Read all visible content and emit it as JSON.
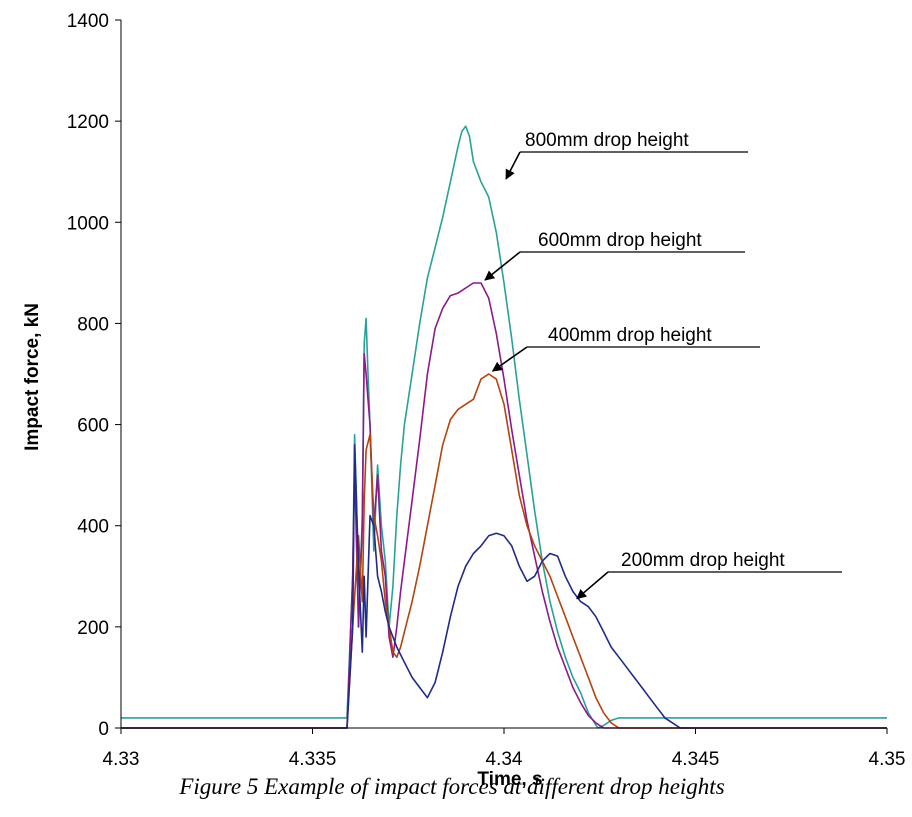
{
  "chart_data": {
    "type": "line",
    "xlabel": "Time, s",
    "ylabel": "Impact force, kN",
    "xlim": [
      4.33,
      4.35
    ],
    "ylim": [
      0,
      1400
    ],
    "xticks": [
      "4.33",
      "4.335",
      "4.34",
      "4.345",
      "4.35"
    ],
    "yticks": [
      "0",
      "200",
      "400",
      "600",
      "800",
      "1000",
      "1200",
      "1400"
    ],
    "grid": false,
    "series": [
      {
        "name": "800mm drop height",
        "color": "#2aa198",
        "x": [
          4.33,
          4.3359,
          4.33605,
          4.3361,
          4.33615,
          4.3362,
          4.3363,
          4.33635,
          4.3364,
          4.33645,
          4.3365,
          4.3366,
          4.3367,
          4.3368,
          4.3369,
          4.337,
          4.3371,
          4.3372,
          4.3373,
          4.3374,
          4.3376,
          4.3378,
          4.338,
          4.3382,
          4.3384,
          4.3386,
          4.3388,
          4.3389,
          4.339,
          4.3391,
          4.3392,
          4.3394,
          4.3396,
          4.3398,
          4.34,
          4.3402,
          4.3404,
          4.3406,
          4.3408,
          4.341,
          4.3412,
          4.3414,
          4.3416,
          4.3418,
          4.342,
          4.3422,
          4.34245,
          4.3426,
          4.3428,
          4.343,
          4.3435,
          4.344,
          4.345,
          4.346,
          4.347,
          4.348,
          4.349,
          4.35
        ],
        "y": [
          20,
          20,
          300,
          580,
          450,
          200,
          420,
          760,
          810,
          700,
          600,
          350,
          520,
          400,
          330,
          200,
          280,
          420,
          520,
          600,
          700,
          800,
          890,
          950,
          1010,
          1080,
          1150,
          1180,
          1190,
          1170,
          1120,
          1080,
          1050,
          980,
          880,
          770,
          650,
          540,
          430,
          330,
          250,
          190,
          140,
          100,
          70,
          30,
          0,
          5,
          15,
          20,
          20,
          20,
          20,
          20,
          20,
          20,
          20,
          20
        ]
      },
      {
        "name": "600mm drop height",
        "color": "#8b1a8b",
        "x": [
          4.33,
          4.3359,
          4.33605,
          4.3361,
          4.3362,
          4.3363,
          4.33635,
          4.3364,
          4.33645,
          4.3365,
          4.3366,
          4.3367,
          4.3368,
          4.3369,
          4.337,
          4.3371,
          4.3372,
          4.3373,
          4.3374,
          4.3376,
          4.3378,
          4.338,
          4.3382,
          4.3384,
          4.3386,
          4.3388,
          4.339,
          4.3392,
          4.3394,
          4.3396,
          4.3398,
          4.34,
          4.3402,
          4.3404,
          4.3406,
          4.3408,
          4.341,
          4.3412,
          4.3414,
          4.3416,
          4.3418,
          4.342,
          4.3422,
          4.3424,
          4.3426,
          4.3428,
          4.343,
          4.35
        ],
        "y": [
          0,
          0,
          300,
          520,
          200,
          400,
          740,
          700,
          650,
          600,
          400,
          500,
          350,
          300,
          180,
          140,
          200,
          270,
          330,
          450,
          570,
          700,
          790,
          830,
          855,
          860,
          870,
          880,
          880,
          850,
          780,
          690,
          590,
          500,
          410,
          340,
          270,
          210,
          160,
          120,
          80,
          50,
          25,
          10,
          0,
          0,
          0,
          0
        ]
      },
      {
        "name": "400mm drop height",
        "color": "#b5430f",
        "x": [
          4.33,
          4.3359,
          4.33605,
          4.3362,
          4.3363,
          4.33635,
          4.3364,
          4.3365,
          4.3366,
          4.3367,
          4.3368,
          4.3369,
          4.337,
          4.3371,
          4.3372,
          4.3373,
          4.3374,
          4.3376,
          4.3378,
          4.338,
          4.3382,
          4.3384,
          4.3386,
          4.3388,
          4.339,
          4.3392,
          4.3394,
          4.3396,
          4.3398,
          4.34,
          4.3402,
          4.3404,
          4.3406,
          4.3408,
          4.341,
          4.3412,
          4.3414,
          4.3416,
          4.3418,
          4.342,
          4.3422,
          4.3424,
          4.3426,
          4.3428,
          4.343,
          4.35
        ],
        "y": [
          0,
          0,
          200,
          380,
          250,
          450,
          550,
          580,
          420,
          380,
          330,
          250,
          200,
          150,
          140,
          160,
          190,
          250,
          320,
          400,
          480,
          560,
          610,
          630,
          640,
          650,
          690,
          700,
          690,
          640,
          550,
          460,
          400,
          360,
          330,
          300,
          260,
          220,
          180,
          140,
          100,
          60,
          30,
          10,
          0,
          0
        ]
      },
      {
        "name": "200mm drop height",
        "color": "#1f2a8a",
        "x": [
          4.33,
          4.3359,
          4.33605,
          4.3361,
          4.3362,
          4.3363,
          4.33635,
          4.3364,
          4.3365,
          4.3366,
          4.3367,
          4.3368,
          4.3369,
          4.337,
          4.3372,
          4.3374,
          4.3376,
          4.3378,
          4.338,
          4.3382,
          4.3384,
          4.3386,
          4.3388,
          4.339,
          4.3392,
          4.3394,
          4.3396,
          4.3398,
          4.34,
          4.3402,
          4.3404,
          4.3406,
          4.3408,
          4.341,
          4.3412,
          4.3414,
          4.3416,
          4.3418,
          4.342,
          4.3422,
          4.3424,
          4.3426,
          4.3428,
          4.343,
          4.3432,
          4.3434,
          4.3436,
          4.3438,
          4.344,
          4.3442,
          4.3444,
          4.3446,
          4.35
        ],
        "y": [
          0,
          0,
          200,
          560,
          320,
          150,
          300,
          180,
          420,
          400,
          300,
          270,
          230,
          200,
          160,
          130,
          100,
          80,
          60,
          90,
          150,
          220,
          280,
          320,
          345,
          360,
          380,
          385,
          380,
          360,
          320,
          290,
          300,
          330,
          345,
          340,
          300,
          270,
          250,
          240,
          220,
          190,
          160,
          140,
          120,
          100,
          80,
          60,
          40,
          20,
          10,
          0,
          0
        ]
      }
    ],
    "annotations": [
      {
        "text": "800mm drop height",
        "series": "800mm drop height",
        "x": 4.33995,
        "y": 1080
      },
      {
        "text": "600mm drop height",
        "series": "600mm drop height",
        "x": 4.3394,
        "y": 880
      },
      {
        "text": "400mm drop height",
        "series": "400mm drop height",
        "x": 4.3396,
        "y": 700
      },
      {
        "text": "200mm drop height",
        "series": "200mm drop height",
        "x": 4.3418,
        "y": 250
      }
    ],
    "caption": "Figure 5 Example of impact forces at different drop heights"
  }
}
